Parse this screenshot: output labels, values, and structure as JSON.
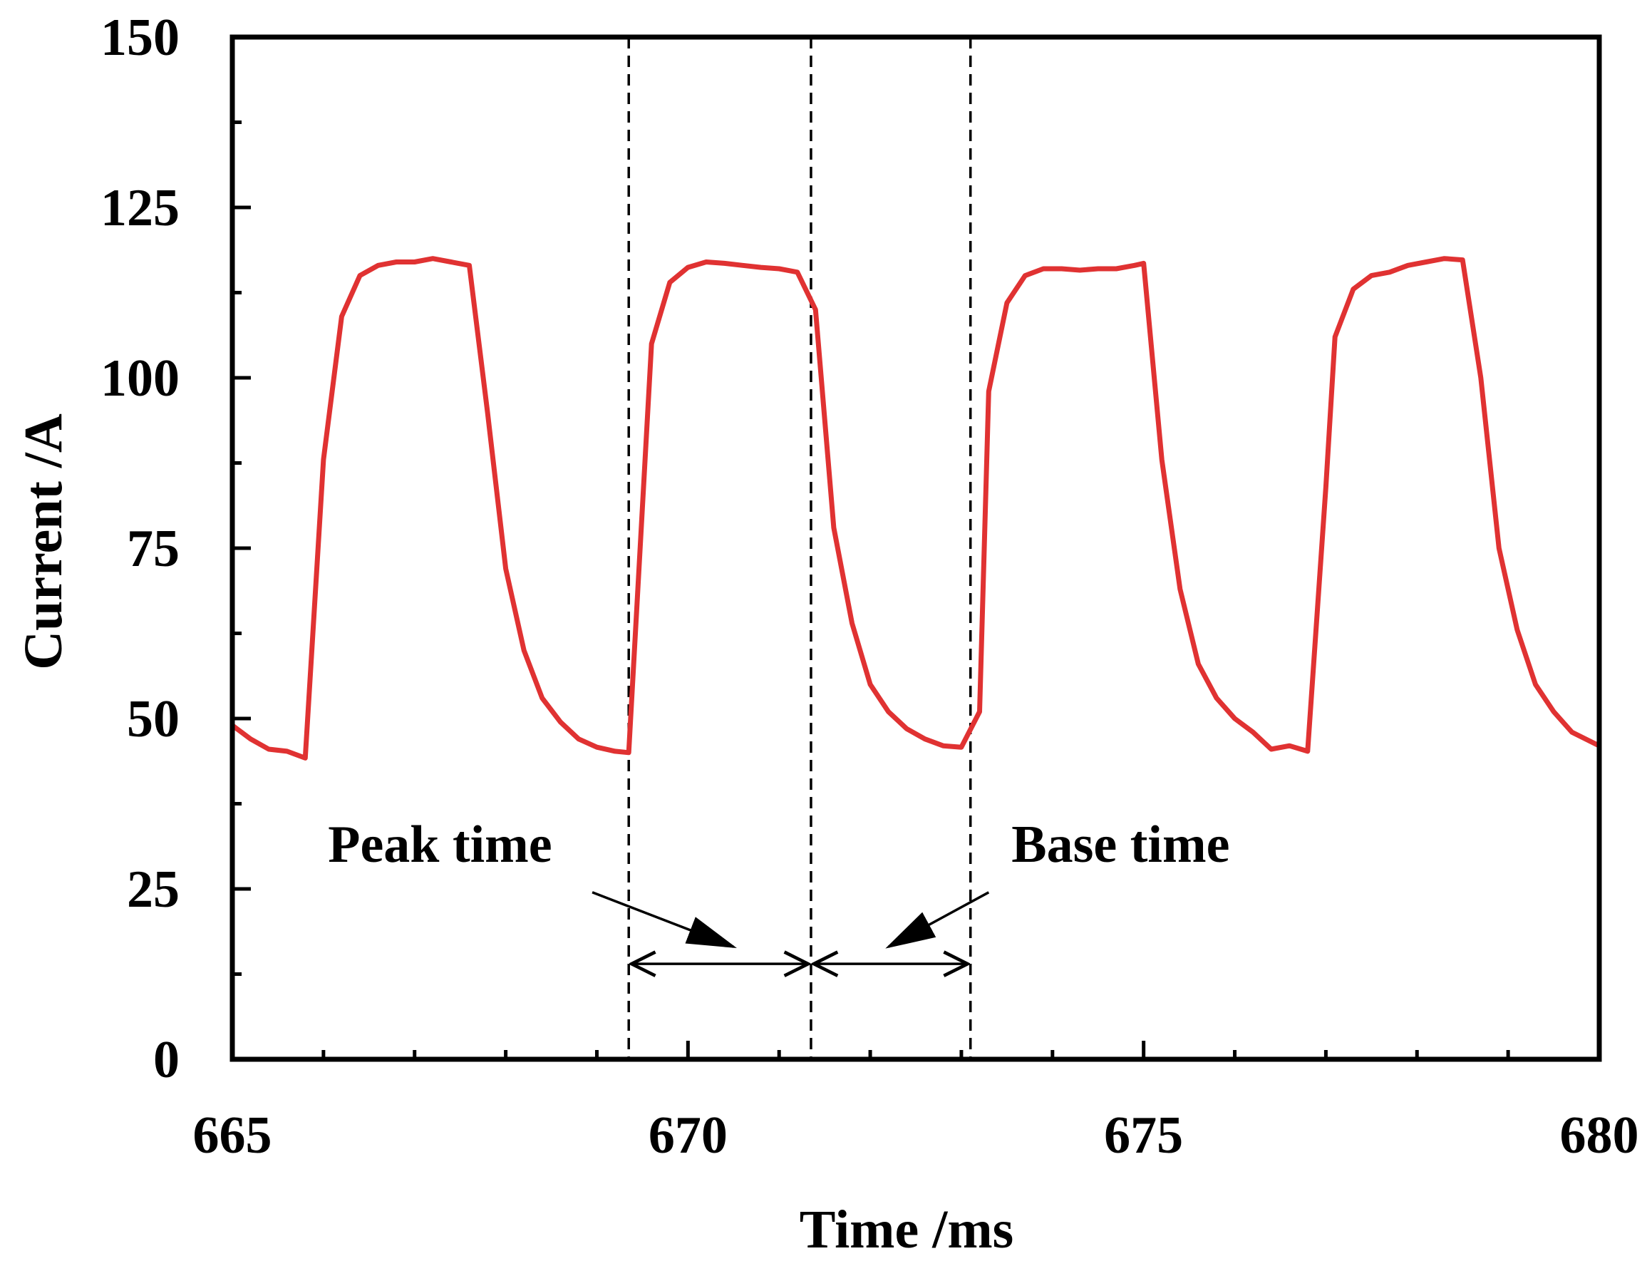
{
  "chart_data": {
    "type": "line",
    "title": "",
    "xlabel": "Time  /ms",
    "ylabel": "Current  /A",
    "xlim": [
      665,
      680
    ],
    "ylim": [
      0,
      150
    ],
    "x_ticks": [
      665,
      670,
      675,
      680
    ],
    "y_ticks": [
      0,
      25,
      50,
      75,
      100,
      125,
      150
    ],
    "x_minor_step": 1,
    "y_minor_step": 12.5,
    "grid": false,
    "legend": "none",
    "series": [
      {
        "name": "Current",
        "color": "#e03232",
        "points": [
          [
            665.0,
            49
          ],
          [
            665.2,
            47
          ],
          [
            665.4,
            45.5
          ],
          [
            665.6,
            45.2
          ],
          [
            665.8,
            44.2
          ],
          [
            666.0,
            88
          ],
          [
            666.2,
            109
          ],
          [
            666.4,
            115
          ],
          [
            666.6,
            116.5
          ],
          [
            666.8,
            117
          ],
          [
            667.0,
            117
          ],
          [
            667.2,
            117.5
          ],
          [
            667.4,
            117
          ],
          [
            667.6,
            116.5
          ],
          [
            667.8,
            95
          ],
          [
            668.0,
            72
          ],
          [
            668.2,
            60
          ],
          [
            668.4,
            53
          ],
          [
            668.6,
            49.5
          ],
          [
            668.8,
            47
          ],
          [
            669.0,
            45.8
          ],
          [
            669.2,
            45.2
          ],
          [
            669.35,
            45
          ],
          [
            669.6,
            105
          ],
          [
            669.8,
            114
          ],
          [
            670.0,
            116.2
          ],
          [
            670.2,
            117
          ],
          [
            670.4,
            116.8
          ],
          [
            670.6,
            116.5
          ],
          [
            670.8,
            116.2
          ],
          [
            671.0,
            116
          ],
          [
            671.2,
            115.5
          ],
          [
            671.4,
            110
          ],
          [
            671.6,
            78
          ],
          [
            671.8,
            64
          ],
          [
            672.0,
            55
          ],
          [
            672.2,
            51
          ],
          [
            672.4,
            48.5
          ],
          [
            672.6,
            47
          ],
          [
            672.8,
            46
          ],
          [
            673.0,
            45.8
          ],
          [
            673.2,
            51
          ],
          [
            673.3,
            98
          ],
          [
            673.5,
            111
          ],
          [
            673.7,
            115
          ],
          [
            673.9,
            116
          ],
          [
            674.1,
            116
          ],
          [
            674.3,
            115.8
          ],
          [
            674.5,
            116
          ],
          [
            674.7,
            116
          ],
          [
            674.9,
            116.5
          ],
          [
            675.0,
            116.8
          ],
          [
            675.2,
            88
          ],
          [
            675.4,
            69
          ],
          [
            675.6,
            58
          ],
          [
            675.8,
            53
          ],
          [
            676.0,
            50
          ],
          [
            676.2,
            48
          ],
          [
            676.4,
            45.5
          ],
          [
            676.6,
            46
          ],
          [
            676.8,
            45.2
          ],
          [
            677.0,
            84
          ],
          [
            677.1,
            106
          ],
          [
            677.3,
            113
          ],
          [
            677.5,
            115
          ],
          [
            677.7,
            115.5
          ],
          [
            677.9,
            116.5
          ],
          [
            678.1,
            117
          ],
          [
            678.3,
            117.5
          ],
          [
            678.5,
            117.3
          ],
          [
            678.7,
            100
          ],
          [
            678.9,
            75
          ],
          [
            679.1,
            63
          ],
          [
            679.3,
            55
          ],
          [
            679.5,
            51
          ],
          [
            679.7,
            48
          ],
          [
            680.0,
            46
          ]
        ]
      }
    ],
    "markers": [
      {
        "name": "peak-start",
        "x": 669.35
      },
      {
        "name": "peak-end-base-start",
        "x": 671.35
      },
      {
        "name": "base-end",
        "x": 673.1
      }
    ],
    "annotations": [
      {
        "name": "peak-time",
        "text": "Peak time",
        "from": 669.35,
        "to": 671.35,
        "y": 14,
        "text_x": 666.05,
        "text_y": 29,
        "arrow_from": [
          668.95,
          24.5
        ],
        "arrow_to": [
          670.5,
          16.5
        ]
      },
      {
        "name": "base-time",
        "text": "Base time",
        "from": 671.35,
        "to": 673.1,
        "y": 14,
        "text_x": 673.55,
        "text_y": 29,
        "arrow_from": [
          673.3,
          24.5
        ],
        "arrow_to": [
          672.2,
          16.5
        ]
      }
    ]
  }
}
